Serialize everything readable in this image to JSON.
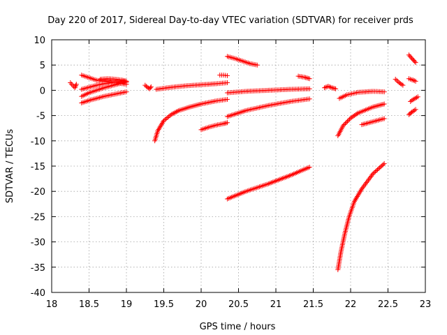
{
  "chart_data": {
    "type": "scatter",
    "title": "Day 220 of 2017, Sidereal Day-to-day VTEC variation (SDTVAR) for receiver prds",
    "xlabel": "GPS time / hours",
    "ylabel": "SDTVAR / TECUs",
    "xlim": [
      18,
      23
    ],
    "ylim": [
      -40,
      10
    ],
    "xticks": [
      18,
      18.5,
      19,
      19.5,
      20,
      20.5,
      21,
      21.5,
      22,
      22.5,
      23
    ],
    "xtick_labels": [
      "18",
      "18.5",
      "19",
      "19.5",
      "20",
      "20.5",
      "21",
      "21.5",
      "22",
      "22.5",
      "23"
    ],
    "yticks": [
      -40,
      -35,
      -30,
      -25,
      -20,
      -15,
      -10,
      -5,
      0,
      5,
      10
    ],
    "ytick_labels": [
      "-40",
      "-35",
      "-30",
      "-25",
      "-20",
      "-15",
      "-10",
      "-5",
      "0",
      "5",
      "10"
    ],
    "grid": true,
    "marker": "plus",
    "marker_color": "#ff0000",
    "series": [
      {
        "x": [
          18.25,
          18.28,
          18.31,
          18.33
        ],
        "y": [
          1.5,
          1.0,
          0.5,
          1.2
        ]
      },
      {
        "x": [
          18.4,
          18.5,
          18.6,
          18.7,
          18.8,
          18.9,
          19.0
        ],
        "y": [
          3.0,
          2.5,
          2.0,
          1.8,
          1.6,
          1.4,
          1.2
        ]
      },
      {
        "x": [
          18.4,
          18.5,
          18.6,
          18.7,
          18.8,
          18.9,
          19.0
        ],
        "y": [
          0.2,
          0.6,
          1.0,
          1.3,
          1.5,
          1.6,
          1.8
        ]
      },
      {
        "x": [
          18.4,
          18.5,
          18.6,
          18.7,
          18.8,
          18.9,
          19.0
        ],
        "y": [
          -1.2,
          -0.5,
          0.0,
          0.5,
          0.9,
          1.3,
          1.6
        ]
      },
      {
        "x": [
          18.4,
          18.5,
          18.6,
          18.7,
          18.8,
          18.9,
          19.0
        ],
        "y": [
          -2.5,
          -2.0,
          -1.6,
          -1.2,
          -0.9,
          -0.6,
          -0.3
        ]
      },
      {
        "x": [
          18.65,
          18.75,
          18.85,
          18.95,
          19.0
        ],
        "y": [
          2.2,
          2.3,
          2.2,
          2.0,
          1.8
        ]
      },
      {
        "x": [
          19.25,
          19.28,
          19.31,
          19.33
        ],
        "y": [
          1.0,
          0.6,
          0.3,
          0.7
        ]
      },
      {
        "x": [
          19.4,
          19.6,
          19.8,
          20.0,
          20.2,
          20.35
        ],
        "y": [
          0.2,
          0.6,
          0.9,
          1.1,
          1.3,
          1.5
        ]
      },
      {
        "x": [
          19.38,
          19.42,
          19.5,
          19.6,
          19.7,
          19.85,
          20.0,
          20.2,
          20.35
        ],
        "y": [
          -10.0,
          -8.0,
          -6.0,
          -4.8,
          -4.0,
          -3.3,
          -2.7,
          -2.1,
          -1.8
        ]
      },
      {
        "x": [
          20.25,
          20.3,
          20.35
        ],
        "y": [
          3.0,
          3.0,
          2.9
        ]
      },
      {
        "x": [
          20.0,
          20.1,
          20.2,
          20.3,
          20.35
        ],
        "y": [
          -7.8,
          -7.3,
          -6.9,
          -6.6,
          -6.4
        ]
      },
      {
        "x": [
          20.35,
          20.45,
          20.55,
          20.65,
          20.75
        ],
        "y": [
          6.7,
          6.3,
          5.8,
          5.3,
          5.0
        ]
      },
      {
        "x": [
          20.35,
          20.6,
          20.9,
          21.2,
          21.45
        ],
        "y": [
          -0.5,
          -0.2,
          0.0,
          0.2,
          0.3
        ]
      },
      {
        "x": [
          20.35,
          20.6,
          20.9,
          21.2,
          21.45
        ],
        "y": [
          -5.2,
          -4.0,
          -3.0,
          -2.2,
          -1.7
        ]
      },
      {
        "x": [
          20.35,
          20.6,
          20.9,
          21.2,
          21.45
        ],
        "y": [
          -21.5,
          -20.0,
          -18.5,
          -16.8,
          -15.2
        ]
      },
      {
        "x": [
          21.3,
          21.38,
          21.45
        ],
        "y": [
          2.8,
          2.6,
          2.3
        ]
      },
      {
        "x": [
          21.65,
          21.7,
          21.75,
          21.8
        ],
        "y": [
          0.5,
          0.8,
          0.5,
          0.3
        ]
      },
      {
        "x": [
          21.85,
          21.95,
          22.1,
          22.3,
          22.45
        ],
        "y": [
          -1.6,
          -0.9,
          -0.4,
          -0.2,
          -0.3
        ]
      },
      {
        "x": [
          21.83,
          21.9,
          22.0,
          22.1,
          22.3,
          22.45
        ],
        "y": [
          -9.0,
          -7.0,
          -5.5,
          -4.5,
          -3.3,
          -2.7
        ]
      },
      {
        "x": [
          22.15,
          22.25,
          22.35,
          22.45
        ],
        "y": [
          -6.8,
          -6.4,
          -6.0,
          -5.6
        ]
      },
      {
        "x": [
          21.83,
          21.87,
          21.92,
          21.98,
          22.05,
          22.15,
          22.3,
          22.45
        ],
        "y": [
          -35.5,
          -32.0,
          -28.5,
          -25.0,
          -22.0,
          -19.5,
          -16.5,
          -14.5
        ]
      },
      {
        "x": [
          22.6,
          22.65,
          22.7
        ],
        "y": [
          2.2,
          1.5,
          1.0
        ]
      },
      {
        "x": [
          22.78,
          22.82,
          22.87
        ],
        "y": [
          2.3,
          2.1,
          1.8
        ]
      },
      {
        "x": [
          22.78,
          22.82,
          22.87
        ],
        "y": [
          7.0,
          6.3,
          5.5
        ]
      },
      {
        "x": [
          22.8,
          22.85,
          22.9
        ],
        "y": [
          -2.2,
          -1.7,
          -1.3
        ]
      },
      {
        "x": [
          22.78,
          22.82,
          22.87
        ],
        "y": [
          -4.8,
          -4.3,
          -3.8
        ]
      }
    ]
  }
}
